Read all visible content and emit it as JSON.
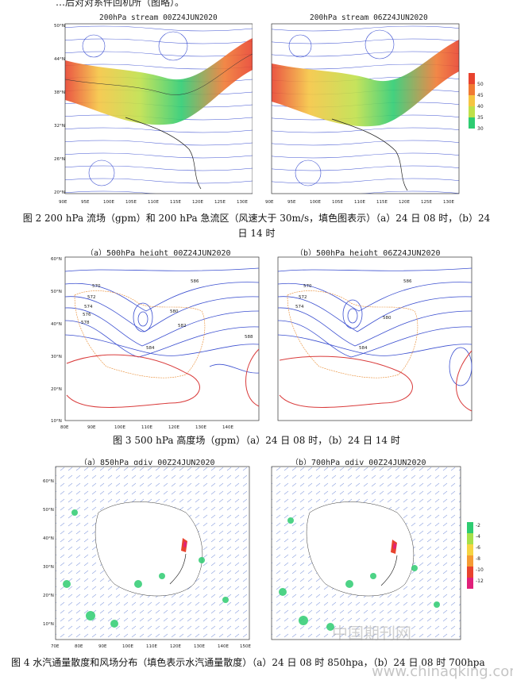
{
  "top_fragment": "…后对对系件回机所（图略）。",
  "fig2": {
    "panel_a_title": "200hPa stream 00Z24JUN2020",
    "panel_b_title": "200hPa stream 06Z24JUN2020",
    "lat_ticks": [
      "50°N",
      "44°N",
      "38°N",
      "32°N",
      "26°N",
      "20°N"
    ],
    "lon_ticks": [
      "90E",
      "95E",
      "100E",
      "105E",
      "110E",
      "115E",
      "120E",
      "125E",
      "130E"
    ],
    "legend": [
      "50",
      "45",
      "40",
      "35",
      "30"
    ],
    "legend_colors": [
      "#e8432e",
      "#f07a33",
      "#f5c542",
      "#bfe04a",
      "#2ecc71"
    ],
    "caption_line1": "图 2 200 hPa 流场（gpm）和 200 hPa 急流区（风速大于 30m/s，填色图表示）（a）24 日 08 时，（b）24",
    "caption_line2": "日 14 时"
  },
  "fig3": {
    "panel_a_title": "（a）500hPa height 00Z24JUN2020",
    "panel_b_title": "（b）500hPa height 06Z24JUN2020",
    "lat_ticks": [
      "60°N",
      "50°N",
      "40°N",
      "30°N",
      "20°N",
      "10°N"
    ],
    "lon_ticks": [
      "80E",
      "90E",
      "100E",
      "110E",
      "120E",
      "130E",
      "140E"
    ],
    "contour_labels": [
      "586",
      "570",
      "572",
      "574",
      "576",
      "578",
      "580",
      "582",
      "584",
      "588"
    ],
    "caption": "图 3 500 hPa 高度场（gpm）（a）24 日 08 时，（b）24 日 14 时"
  },
  "fig4": {
    "panel_a_title": "（a）850hPa qdiv 00Z24JUN2020",
    "panel_b_title": "（b）700hPa qdiv 00Z24JUN2020",
    "lat_ticks": [
      "60°N",
      "50°N",
      "40°N",
      "30°N",
      "20°N",
      "10°N"
    ],
    "lon_ticks": [
      "70E",
      "80E",
      "90E",
      "100E",
      "110E",
      "120E",
      "130E",
      "140E",
      "150E"
    ],
    "legend": [
      "-2",
      "-4",
      "-6",
      "-8",
      "-10",
      "-12"
    ],
    "legend_colors": [
      "#2ecc71",
      "#a6e04a",
      "#f5d442",
      "#f59b33",
      "#e8432e",
      "#e0207a"
    ],
    "caption": "图 4 水汽通量散度和风场分布（填色表示水汽通量散度）（a）24 日 08 时 850hpa，（b）24 日 08 时 700hpa"
  },
  "watermark": "中国期刊网",
  "watermark_url": "www.chinaqking.com"
}
